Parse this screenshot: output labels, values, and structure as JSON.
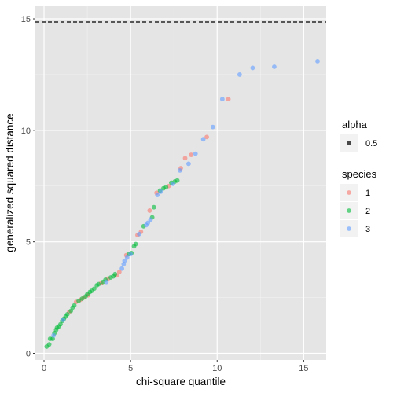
{
  "chart_data": {
    "type": "scatter",
    "title": "",
    "xlabel": "chi-square quantile",
    "ylabel": "generalized squared distance",
    "xlim": [
      -0.5,
      16.3
    ],
    "ylim": [
      -0.3,
      15.6
    ],
    "x_ticks": [
      0,
      5,
      10,
      15
    ],
    "y_ticks": [
      0,
      5,
      10,
      15
    ],
    "x_tick_labels": [
      "0",
      "5",
      "10",
      "15"
    ],
    "y_tick_labels": [
      "0",
      "5",
      "10",
      "15"
    ],
    "grid": true,
    "panel_background": "#e5e5e5",
    "reference_line": {
      "y": 14.86,
      "style": "dashed",
      "color": "#000000"
    },
    "legend_placement": "right",
    "legends": [
      {
        "title": "alpha",
        "entries": [
          {
            "label": "0.5",
            "color": "#000000"
          }
        ]
      },
      {
        "title": "species",
        "entries": [
          {
            "label": "1",
            "color": "#F8766D"
          },
          {
            "label": "2",
            "color": "#00BA38"
          },
          {
            "label": "3",
            "color": "#619CFF"
          }
        ]
      }
    ],
    "series": [
      {
        "name": "1",
        "color": "#F8766D",
        "points": [
          [
            1.45,
            1.85
          ],
          [
            1.85,
            2.3
          ],
          [
            2.1,
            2.4
          ],
          [
            2.3,
            2.5
          ],
          [
            2.55,
            2.6
          ],
          [
            3.3,
            3.15
          ],
          [
            3.7,
            3.35
          ],
          [
            4.2,
            3.5
          ],
          [
            4.35,
            3.65
          ],
          [
            4.75,
            4.4
          ],
          [
            5.4,
            5.3
          ],
          [
            5.6,
            5.45
          ],
          [
            6.1,
            6.4
          ],
          [
            6.5,
            7.2
          ],
          [
            7.2,
            7.5
          ],
          [
            7.9,
            8.3
          ],
          [
            8.15,
            8.75
          ],
          [
            8.5,
            8.9
          ],
          [
            9.4,
            9.7
          ],
          [
            10.65,
            11.4
          ]
        ]
      },
      {
        "name": "2",
        "color": "#00BA38",
        "points": [
          [
            0.15,
            0.3
          ],
          [
            0.3,
            0.4
          ],
          [
            0.35,
            0.65
          ],
          [
            0.5,
            0.65
          ],
          [
            0.6,
            0.9
          ],
          [
            0.7,
            1.05
          ],
          [
            0.75,
            1.15
          ],
          [
            0.85,
            1.2
          ],
          [
            0.95,
            1.3
          ],
          [
            1.05,
            1.45
          ],
          [
            1.15,
            1.55
          ],
          [
            1.25,
            1.65
          ],
          [
            1.35,
            1.75
          ],
          [
            1.55,
            1.9
          ],
          [
            1.65,
            2.05
          ],
          [
            1.75,
            2.15
          ],
          [
            2.0,
            2.35
          ],
          [
            2.2,
            2.45
          ],
          [
            2.4,
            2.55
          ],
          [
            2.5,
            2.65
          ],
          [
            2.65,
            2.75
          ],
          [
            2.75,
            2.8
          ],
          [
            2.9,
            2.9
          ],
          [
            3.05,
            3.05
          ],
          [
            3.15,
            3.1
          ],
          [
            3.4,
            3.2
          ],
          [
            3.55,
            3.3
          ],
          [
            3.85,
            3.4
          ],
          [
            4.0,
            3.45
          ],
          [
            4.1,
            3.55
          ],
          [
            4.9,
            4.45
          ],
          [
            5.05,
            4.5
          ],
          [
            5.2,
            4.8
          ],
          [
            5.3,
            4.9
          ],
          [
            5.75,
            5.7
          ],
          [
            6.25,
            6.1
          ],
          [
            6.35,
            6.55
          ],
          [
            6.7,
            7.3
          ],
          [
            6.9,
            7.4
          ],
          [
            7.05,
            7.45
          ],
          [
            7.35,
            7.65
          ],
          [
            7.55,
            7.7
          ],
          [
            7.7,
            7.75
          ]
        ]
      },
      {
        "name": "3",
        "color": "#619CFF",
        "points": [
          [
            0.55,
            0.8
          ],
          [
            1.1,
            1.5
          ],
          [
            3.6,
            3.2
          ],
          [
            4.5,
            3.8
          ],
          [
            4.6,
            4.0
          ],
          [
            4.65,
            4.15
          ],
          [
            4.8,
            4.3
          ],
          [
            5.0,
            4.45
          ],
          [
            5.5,
            5.35
          ],
          [
            5.9,
            5.75
          ],
          [
            6.0,
            5.85
          ],
          [
            6.15,
            6.0
          ],
          [
            6.55,
            7.1
          ],
          [
            6.75,
            7.25
          ],
          [
            7.45,
            7.6
          ],
          [
            7.85,
            8.2
          ],
          [
            8.35,
            8.5
          ],
          [
            8.75,
            8.95
          ],
          [
            9.2,
            9.6
          ],
          [
            9.75,
            10.15
          ],
          [
            10.3,
            11.4
          ],
          [
            11.3,
            12.5
          ],
          [
            12.05,
            12.8
          ],
          [
            13.3,
            12.85
          ],
          [
            15.8,
            13.1
          ]
        ]
      }
    ]
  }
}
